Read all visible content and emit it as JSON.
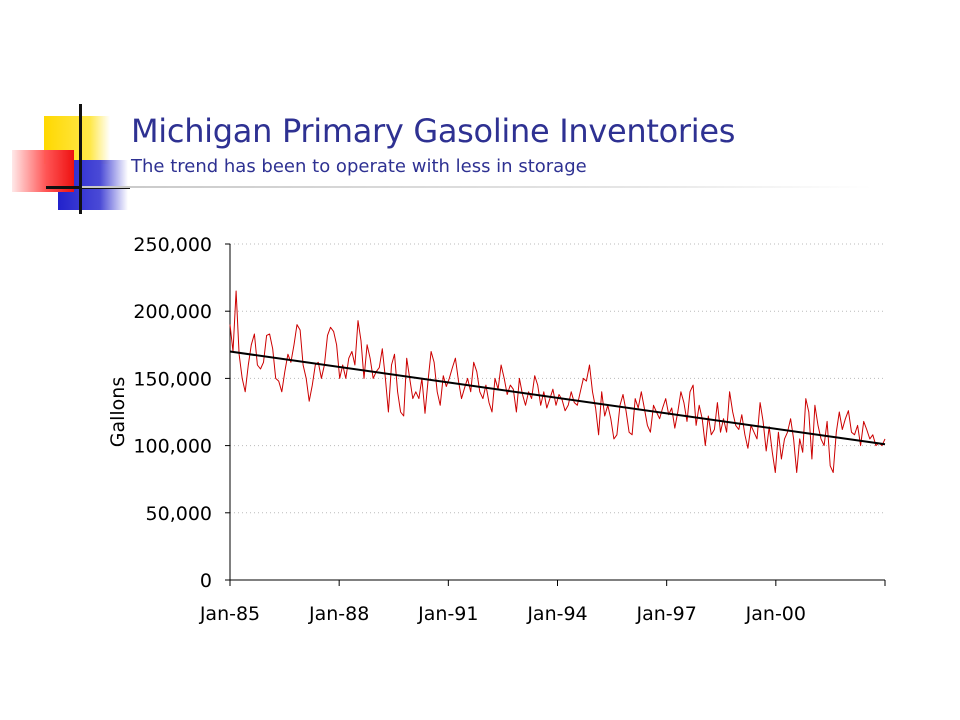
{
  "slide": {
    "title": "Michigan Primary Gasoline Inventories",
    "subtitle": "The trend has been to operate with less in storage"
  },
  "colors": {
    "title": "#2e3192",
    "series": "#cc0000",
    "trend": "#000000",
    "grid": "#bbbbbb"
  },
  "chart_data": {
    "type": "line",
    "title": "",
    "xlabel": "",
    "ylabel": "Gallons",
    "ylim": [
      0,
      250000
    ],
    "yticks": [
      "0",
      "50,000",
      "100,000",
      "150,000",
      "200,000",
      "250,000"
    ],
    "ytick_values": [
      0,
      50000,
      100000,
      150000,
      200000,
      250000
    ],
    "xticks": [
      "Jan-85",
      "Jan-88",
      "Jan-91",
      "Jan-94",
      "Jan-97",
      "Jan-00"
    ],
    "xtick_months": [
      0,
      36,
      72,
      108,
      144,
      180
    ],
    "x_range_months": [
      0,
      216
    ],
    "grid": "horizontal dotted",
    "series": [
      {
        "kind": "data",
        "values": [
          190000,
          170000,
          215000,
          168000,
          150000,
          140000,
          160000,
          175000,
          183000,
          160000,
          157000,
          162000,
          182000,
          183000,
          172000,
          150000,
          148000,
          140000,
          155000,
          168000,
          162000,
          175000,
          190000,
          186000,
          160000,
          150000,
          133000,
          145000,
          160000,
          162000,
          150000,
          160000,
          182000,
          188000,
          185000,
          175000,
          150000,
          160000,
          150000,
          165000,
          170000,
          160000,
          193000,
          178000,
          150000,
          175000,
          165000,
          150000,
          155000,
          158000,
          172000,
          150000,
          125000,
          160000,
          168000,
          140000,
          125000,
          122000,
          165000,
          150000,
          135000,
          140000,
          135000,
          150000,
          124000,
          148000,
          170000,
          162000,
          140000,
          130000,
          152000,
          144000,
          150000,
          158000,
          165000,
          148000,
          135000,
          143000,
          150000,
          140000,
          162000,
          155000,
          140000,
          135000,
          145000,
          132000,
          125000,
          150000,
          142000,
          160000,
          150000,
          138000,
          145000,
          142000,
          125000,
          150000,
          138000,
          130000,
          140000,
          135000,
          152000,
          145000,
          130000,
          140000,
          128000,
          135000,
          142000,
          130000,
          138000,
          134000,
          126000,
          130000,
          140000,
          132000,
          130000,
          140000,
          150000,
          148000,
          160000,
          140000,
          128000,
          108000,
          140000,
          122000,
          130000,
          120000,
          105000,
          108000,
          130000,
          138000,
          126000,
          110000,
          108000,
          135000,
          128000,
          140000,
          128000,
          115000,
          110000,
          130000,
          125000,
          120000,
          128000,
          135000,
          123000,
          128000,
          113000,
          125000,
          140000,
          132000,
          118000,
          140000,
          145000,
          115000,
          130000,
          120000,
          100000,
          122000,
          108000,
          112000,
          132000,
          110000,
          120000,
          110000,
          140000,
          125000,
          115000,
          112000,
          123000,
          108000,
          98000,
          115000,
          110000,
          105000,
          132000,
          118000,
          96000,
          114000,
          95000,
          80000,
          110000,
          90000,
          105000,
          110000,
          120000,
          105000,
          80000,
          105000,
          95000,
          135000,
          125000,
          90000,
          130000,
          115000,
          105000,
          100000,
          118000,
          85000,
          80000,
          110000,
          125000,
          112000,
          120000,
          126000,
          110000,
          108000,
          115000,
          100000,
          118000,
          112000,
          105000,
          108000,
          100000,
          102000,
          100000,
          105000
        ],
        "color": "#cc0000"
      },
      {
        "kind": "trend",
        "x_months": [
          0,
          216
        ],
        "values": [
          170000,
          101000
        ],
        "color": "#000000"
      }
    ]
  }
}
